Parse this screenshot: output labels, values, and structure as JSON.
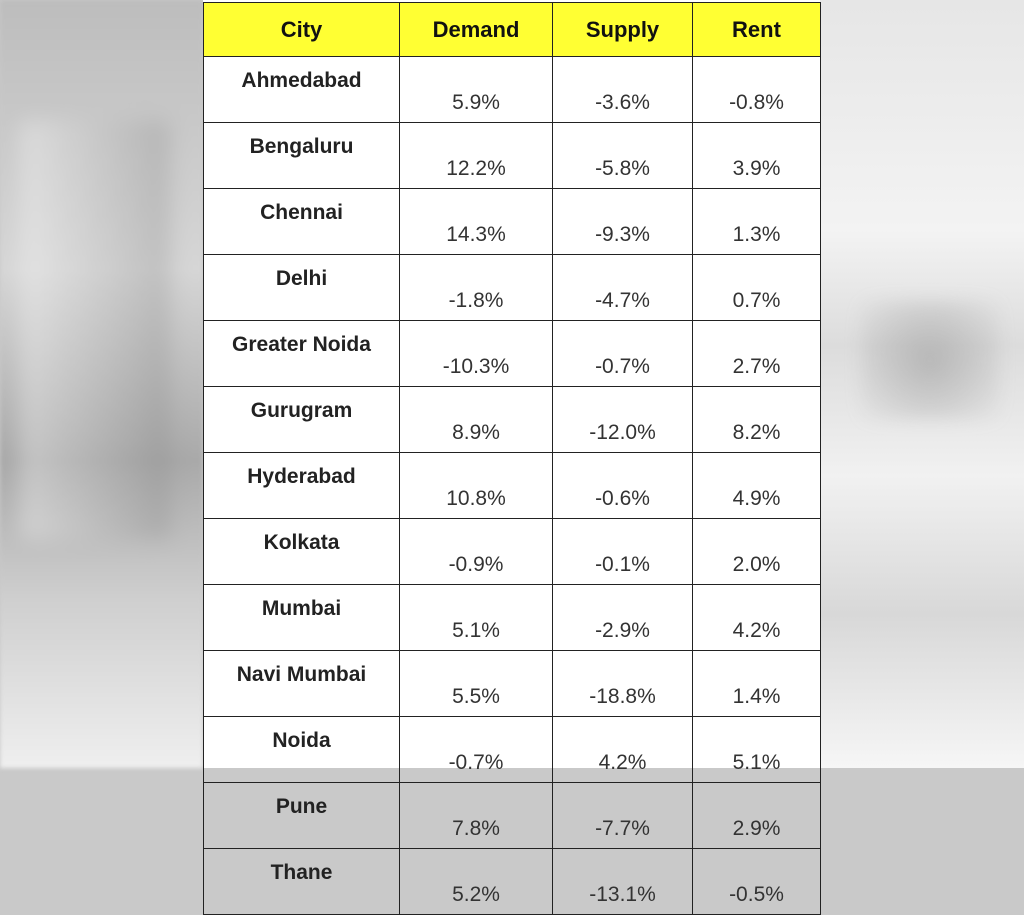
{
  "table": {
    "headers": [
      "City",
      "Demand",
      "Supply",
      "Rent"
    ],
    "rows": [
      [
        "Ahmedabad",
        "5.9%",
        "-3.6%",
        "-0.8%"
      ],
      [
        "Bengaluru",
        "12.2%",
        "-5.8%",
        "3.9%"
      ],
      [
        "Chennai",
        "14.3%",
        "-9.3%",
        "1.3%"
      ],
      [
        "Delhi",
        "-1.8%",
        "-4.7%",
        "0.7%"
      ],
      [
        "Greater Noida",
        "-10.3%",
        "-0.7%",
        "2.7%"
      ],
      [
        "Gurugram",
        "8.9%",
        "-12.0%",
        "8.2%"
      ],
      [
        "Hyderabad",
        "10.8%",
        "-0.6%",
        "4.9%"
      ],
      [
        "Kolkata",
        "-0.9%",
        "-0.1%",
        "2.0%"
      ],
      [
        "Mumbai",
        "5.1%",
        "-2.9%",
        "4.2%"
      ],
      [
        "Navi Mumbai",
        "5.5%",
        "-18.8%",
        "1.4%"
      ],
      [
        "Noida",
        "-0.7%",
        "4.2%",
        "5.1%"
      ],
      [
        "Pune",
        "7.8%",
        "-7.7%",
        "2.9%"
      ],
      [
        "Thane",
        "5.2%",
        "-13.1%",
        "-0.5%"
      ]
    ]
  },
  "colors": {
    "header_bg": "#ffff33",
    "border": "#222222",
    "cell_bg": "#ffffff"
  }
}
